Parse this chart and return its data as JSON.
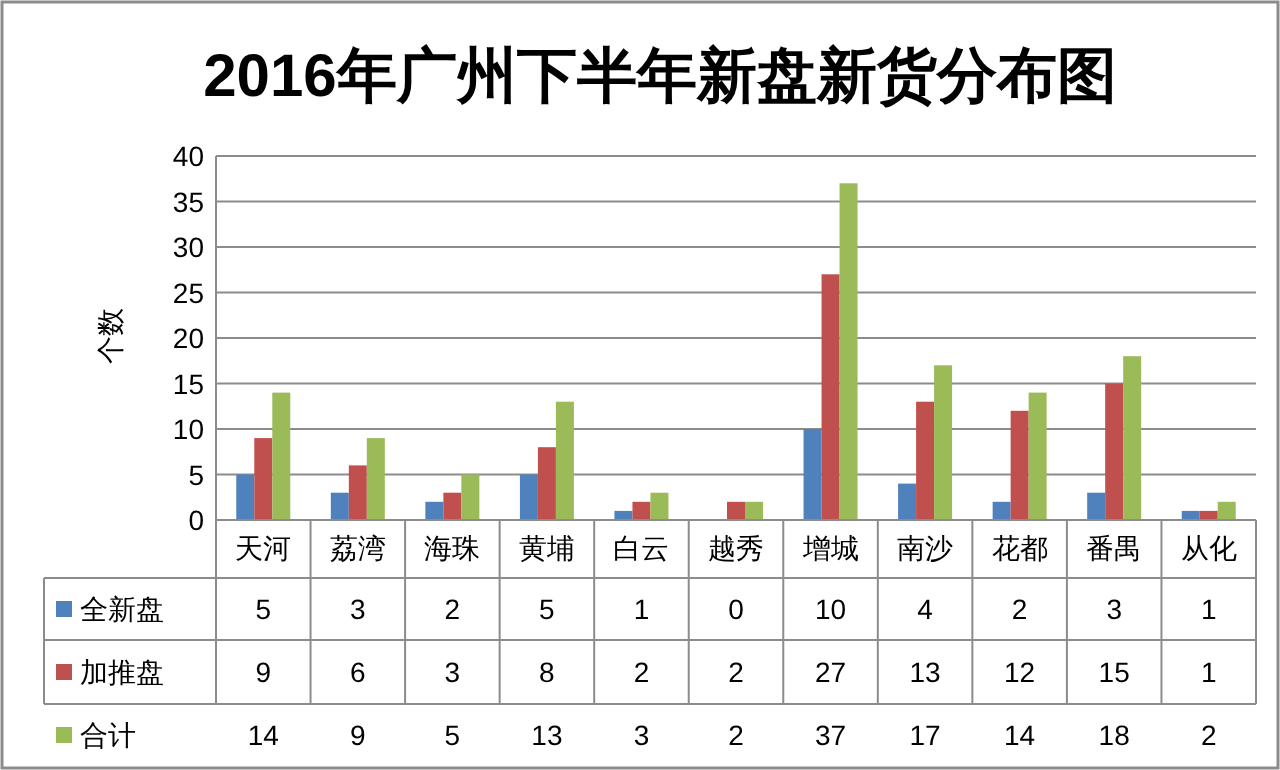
{
  "chart_data": {
    "type": "bar",
    "title": "2016年广州下半年新盘新货分布图",
    "ylabel": "个数",
    "categories": [
      "天河",
      "荔湾",
      "海珠",
      "黄埔",
      "白云",
      "越秀",
      "增城",
      "南沙",
      "花都",
      "番禺",
      "从化"
    ],
    "series": [
      {
        "name": "全新盘",
        "color": "#4f81bd",
        "values": [
          5,
          3,
          2,
          5,
          1,
          0,
          10,
          4,
          2,
          3,
          1
        ]
      },
      {
        "name": "加推盘",
        "color": "#c0504d",
        "values": [
          9,
          6,
          3,
          8,
          2,
          2,
          27,
          13,
          12,
          15,
          1
        ]
      },
      {
        "name": "合计",
        "color": "#9bbb59",
        "values": [
          14,
          9,
          5,
          13,
          3,
          2,
          37,
          17,
          14,
          18,
          2
        ]
      }
    ],
    "ylim": [
      0,
      40
    ],
    "yticks": [
      0,
      5,
      10,
      15,
      20,
      25,
      30,
      35,
      40
    ],
    "grid": "y",
    "legend": "bottom",
    "data_labels": true
  }
}
